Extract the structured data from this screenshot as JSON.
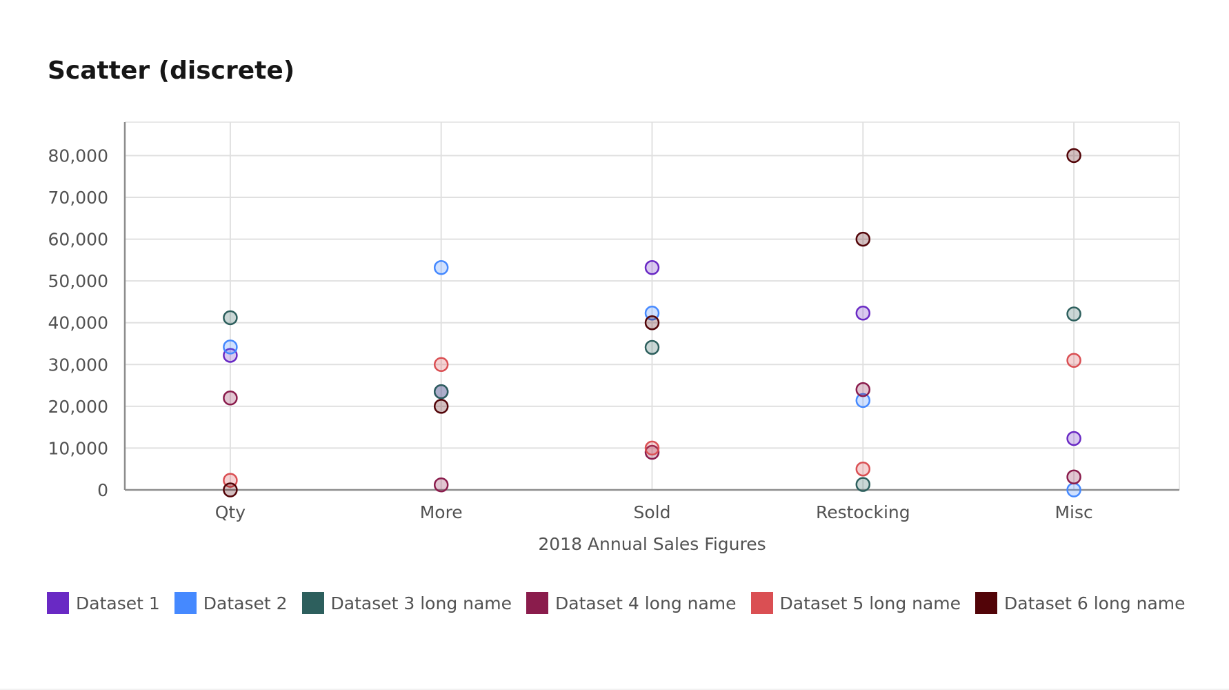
{
  "chart_data": {
    "type": "scatter",
    "title": "Scatter (discrete)",
    "xlabel": "2018 Annual Sales Figures",
    "ylabel": "",
    "categories": [
      "Qty",
      "More",
      "Sold",
      "Restocking",
      "Misc"
    ],
    "ylim": [
      0,
      88000
    ],
    "yticks": [
      0,
      10000,
      20000,
      30000,
      40000,
      50000,
      60000,
      70000,
      80000
    ],
    "ytick_labels": [
      "0",
      "10,000",
      "20,000",
      "30,000",
      "40,000",
      "50,000",
      "60,000",
      "70,000",
      "80,000"
    ],
    "grid": true,
    "legend_position": "bottom-left",
    "series": [
      {
        "name": "Dataset 1",
        "color": "#6929c4",
        "values": [
          32200,
          23500,
          53200,
          42300,
          12300
        ]
      },
      {
        "name": "Dataset 2",
        "color": "#4589ff",
        "values": [
          34200,
          53200,
          42300,
          21400,
          0
        ]
      },
      {
        "name": "Dataset 3 long name",
        "color": "#2d5f5d",
        "values": [
          41200,
          23500,
          34100,
          1300,
          42100
        ]
      },
      {
        "name": "Dataset 4 long name",
        "color": "#8a1c4c",
        "values": [
          22000,
          1200,
          9000,
          24000,
          3100
        ]
      },
      {
        "name": "Dataset 5 long name",
        "color": "#da4f53",
        "values": [
          2300,
          30000,
          10000,
          5000,
          31000
        ]
      },
      {
        "name": "Dataset 6 long name",
        "color": "#520408",
        "values": [
          0,
          20000,
          40000,
          60000,
          80000
        ]
      }
    ]
  }
}
